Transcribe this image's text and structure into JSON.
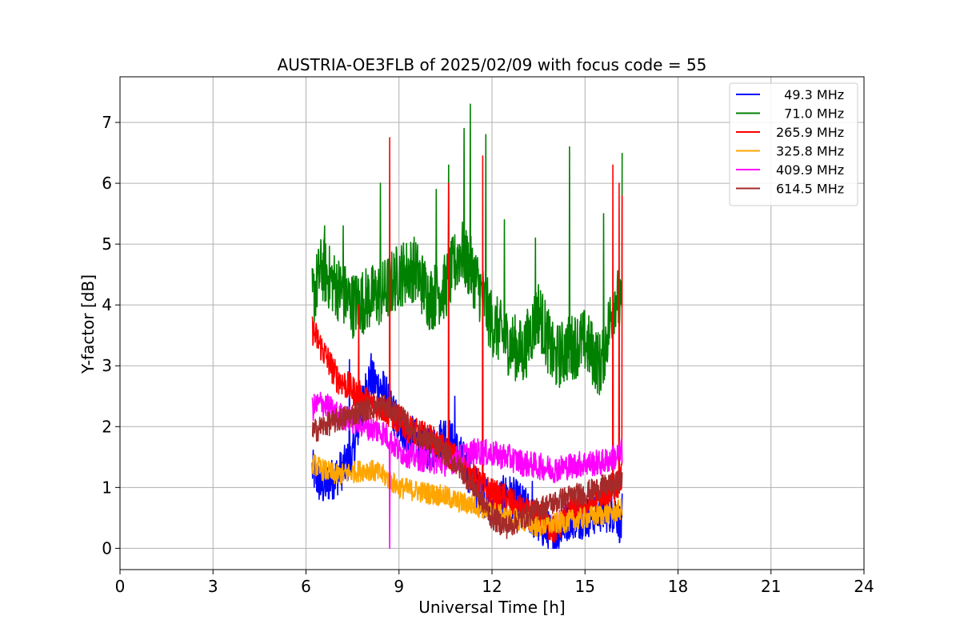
{
  "chart_data": {
    "type": "line",
    "title": "AUSTRIA-OE3FLB of 2025/02/09 with focus code = 55",
    "xlabel": "Universal Time [h]",
    "ylabel": "Y-factor [dB]",
    "xlim": [
      0,
      24
    ],
    "ylim": [
      -0.35,
      7.75
    ],
    "xticks": [
      0,
      3,
      6,
      9,
      12,
      15,
      18,
      21,
      24
    ],
    "yticks": [
      0,
      1,
      2,
      3,
      4,
      5,
      6,
      7
    ],
    "grid": true,
    "legend_position": "top-right",
    "series": [
      {
        "name": "  49.3 MHz",
        "color": "#0000ff",
        "x": [
          6.2,
          6.5,
          7.0,
          7.5,
          8.0,
          8.5,
          9.0,
          9.5,
          10.0,
          10.5,
          11.0,
          11.5,
          12.0,
          12.5,
          13.0,
          13.5,
          14.0,
          14.5,
          15.0,
          15.5,
          16.0,
          16.2
        ],
        "y": [
          1.3,
          1.0,
          1.2,
          1.5,
          2.8,
          2.6,
          2.0,
          1.8,
          1.6,
          1.9,
          1.5,
          1.0,
          0.7,
          0.9,
          0.7,
          0.4,
          0.2,
          0.5,
          0.5,
          0.6,
          0.6,
          0.3
        ],
        "spikes": [
          [
            7.4,
            3.1
          ],
          [
            8.1,
            3.2
          ],
          [
            10.8,
            2.5
          ],
          [
            13.3,
            1.1
          ],
          [
            16.2,
            0.9
          ]
        ]
      },
      {
        "name": "  71.0 MHz",
        "color": "#008000",
        "x": [
          6.2,
          6.5,
          7.0,
          7.5,
          8.0,
          8.5,
          9.0,
          9.5,
          10.0,
          10.5,
          11.0,
          11.5,
          12.0,
          12.5,
          13.0,
          13.5,
          14.0,
          14.5,
          15.0,
          15.5,
          16.0,
          16.2
        ],
        "y": [
          4.1,
          4.6,
          4.3,
          4.0,
          4.1,
          4.2,
          4.5,
          4.6,
          4.1,
          4.3,
          4.9,
          4.4,
          3.7,
          3.4,
          3.2,
          3.9,
          3.1,
          3.3,
          3.4,
          3.0,
          4.2,
          3.8
        ],
        "spikes": [
          [
            6.6,
            5.3
          ],
          [
            7.2,
            5.3
          ],
          [
            8.4,
            6.0
          ],
          [
            10.2,
            5.9
          ],
          [
            10.6,
            6.3
          ],
          [
            11.1,
            6.9
          ],
          [
            11.3,
            7.3
          ],
          [
            11.8,
            6.8
          ],
          [
            12.4,
            5.4
          ],
          [
            13.4,
            5.1
          ],
          [
            14.5,
            6.6
          ],
          [
            15.6,
            5.5
          ],
          [
            16.2,
            6.5
          ]
        ]
      },
      {
        "name": "265.9 MHz",
        "color": "#ff0000",
        "x": [
          6.2,
          6.5,
          7.0,
          7.5,
          8.0,
          8.5,
          9.0,
          9.5,
          10.0,
          10.5,
          11.0,
          11.5,
          12.0,
          12.5,
          13.0,
          13.5,
          14.0,
          14.5,
          15.0,
          15.5,
          16.0,
          16.2
        ],
        "y": [
          3.6,
          3.3,
          2.8,
          2.6,
          2.4,
          2.3,
          2.1,
          1.9,
          1.8,
          1.6,
          1.4,
          1.1,
          0.9,
          0.8,
          0.6,
          0.5,
          0.3,
          0.6,
          0.7,
          0.8,
          1.0,
          1.2
        ],
        "spikes": [
          [
            7.7,
            4.0
          ],
          [
            8.7,
            6.75
          ],
          [
            10.6,
            6.0
          ],
          [
            11.7,
            6.45
          ],
          [
            15.9,
            6.3
          ],
          [
            16.1,
            6.0
          ],
          [
            16.2,
            5.8
          ]
        ]
      },
      {
        "name": "325.8 MHz",
        "color": "#ffa500",
        "x": [
          6.2,
          6.5,
          7.0,
          7.5,
          8.0,
          8.5,
          9.0,
          9.5,
          10.0,
          10.5,
          11.0,
          11.5,
          12.0,
          12.5,
          13.0,
          13.5,
          14.0,
          14.5,
          15.0,
          15.5,
          16.0,
          16.2
        ],
        "y": [
          1.4,
          1.3,
          1.2,
          1.25,
          1.3,
          1.2,
          1.0,
          0.95,
          0.9,
          0.85,
          0.75,
          0.7,
          0.6,
          0.5,
          0.45,
          0.35,
          0.4,
          0.45,
          0.5,
          0.55,
          0.6,
          0.65
        ],
        "spikes": []
      },
      {
        "name": "409.9 MHz",
        "color": "#ff00ff",
        "x": [
          6.2,
          6.5,
          7.0,
          7.5,
          8.0,
          8.5,
          9.0,
          9.5,
          10.0,
          10.5,
          11.0,
          11.5,
          12.0,
          12.5,
          13.0,
          13.5,
          14.0,
          14.5,
          15.0,
          15.5,
          16.0,
          16.2
        ],
        "y": [
          2.3,
          2.4,
          2.2,
          2.1,
          2.0,
          1.9,
          1.6,
          1.5,
          1.45,
          1.4,
          1.5,
          1.6,
          1.55,
          1.5,
          1.4,
          1.35,
          1.3,
          1.35,
          1.4,
          1.4,
          1.5,
          1.6
        ],
        "spikes": [
          [
            8.7,
            0.0
          ]
        ]
      },
      {
        "name": "614.5 MHz",
        "color": "#a52a2a",
        "x": [
          6.2,
          6.5,
          7.0,
          7.5,
          8.0,
          8.5,
          9.0,
          9.5,
          10.0,
          10.5,
          11.0,
          11.5,
          12.0,
          12.5,
          13.0,
          13.5,
          14.0,
          14.5,
          15.0,
          15.5,
          16.0,
          16.2
        ],
        "y": [
          1.9,
          2.0,
          2.1,
          2.2,
          2.3,
          2.35,
          2.2,
          1.9,
          1.75,
          1.55,
          1.3,
          0.95,
          0.5,
          0.35,
          0.5,
          0.65,
          0.75,
          0.85,
          0.9,
          1.0,
          1.05,
          1.15
        ],
        "spikes": []
      }
    ]
  }
}
